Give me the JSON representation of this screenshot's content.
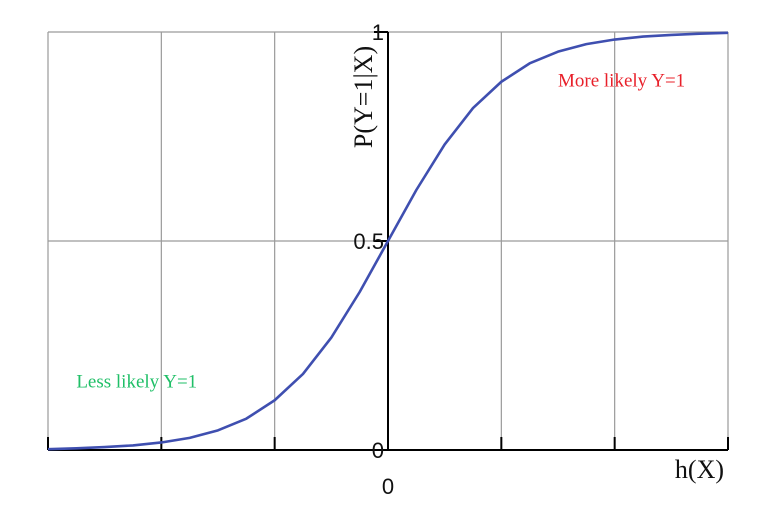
{
  "chart_data": {
    "type": "line",
    "title": "",
    "xlabel": "h(X)",
    "ylabel": "P(Y=1|X)",
    "xlim": [
      -6,
      6
    ],
    "ylim": [
      0,
      1
    ],
    "x_tick_values": [
      -6,
      -4,
      -2,
      0,
      2,
      4,
      6
    ],
    "x_tick_labels": [
      "",
      "",
      "",
      "0",
      "",
      "",
      ""
    ],
    "y_tick_values": [
      0,
      0.5,
      1
    ],
    "y_tick_labels": [
      "0",
      "0.5",
      "1"
    ],
    "grid": true,
    "series": [
      {
        "name": "",
        "color": "#3f4fb0",
        "x": [
          -6,
          -5.5,
          -5,
          -4.5,
          -4,
          -3.5,
          -3,
          -2.5,
          -2,
          -1.5,
          -1,
          -0.5,
          0,
          0.5,
          1,
          1.5,
          2,
          2.5,
          3,
          3.5,
          4,
          4.5,
          5,
          5.5,
          6
        ],
        "y": [
          0.002,
          0.004,
          0.007,
          0.011,
          0.018,
          0.029,
          0.047,
          0.075,
          0.119,
          0.182,
          0.269,
          0.378,
          0.5,
          0.622,
          0.731,
          0.818,
          0.881,
          0.925,
          0.953,
          0.971,
          0.982,
          0.989,
          0.993,
          0.996,
          0.998
        ]
      }
    ],
    "annotations": [
      {
        "text": "More likely Y=1",
        "x": 3.0,
        "y": 0.87,
        "color": "#e8202a"
      },
      {
        "text": "Less likely Y=1",
        "x": -5.5,
        "y": 0.15,
        "color": "#1fbf67"
      }
    ]
  }
}
